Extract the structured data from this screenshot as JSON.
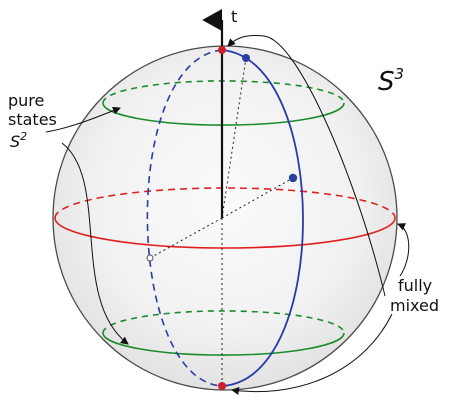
{
  "labels": {
    "axis_t": "t",
    "sphere": "S",
    "sphere_sup": "3",
    "pure_line1": "pure",
    "pure_line2": "states",
    "pure_s": "S",
    "pure_sup": "2",
    "fully_line1": "fully",
    "fully_line2": "mixed"
  },
  "colors": {
    "sphere_stroke": "#4a4a4a",
    "sphere_fill": "#f2f2f2",
    "pure_ring": "#1a8c2a",
    "equator": "#e02020",
    "great_circle": "#2a3aa8",
    "pole_dot": "#cc1e2a",
    "point_dot": "#2b3f9f",
    "axis": "#111111"
  }
}
